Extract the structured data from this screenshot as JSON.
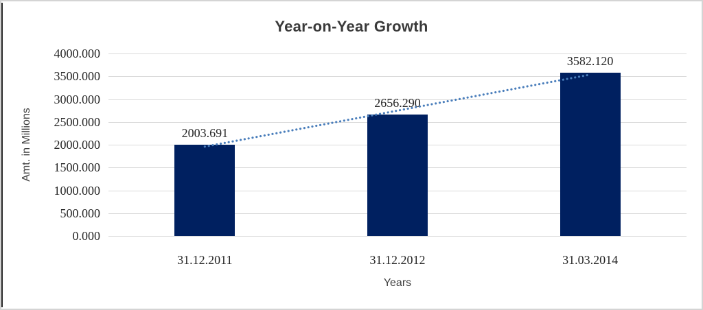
{
  "panel": {
    "background": "#ffffff",
    "border_color": "#d4d4d4",
    "left_edge_color": "#262626"
  },
  "chart_data": {
    "type": "bar",
    "title": "Year-on-Year Growth",
    "xlabel": "Years",
    "ylabel": "Amt. in Millions",
    "ylim": [
      0,
      4000
    ],
    "ytick_step": 500,
    "ytick_values": [
      4000,
      3500,
      3000,
      2500,
      2000,
      1500,
      1000,
      500,
      0
    ],
    "ytick_labels": [
      "4000.000",
      "3500.000",
      "3000.000",
      "2500.000",
      "2000.000",
      "1500.000",
      "1000.000",
      "500.000",
      "0.000"
    ],
    "categories": [
      "31.12.2011",
      "31.12.2012",
      "31.03.2014"
    ],
    "values": [
      2003.691,
      2656.29,
      3582.12
    ],
    "data_labels": [
      "2003.691",
      "2656.290",
      "3582.120"
    ],
    "grid": true,
    "legend": "none",
    "bar_color": "#002060",
    "gridline_color": "#d9d9d9",
    "label_color": "#262626",
    "title_color": "#3a3a3a",
    "trendline": {
      "type": "linear",
      "style": "dotted",
      "color": "#4a7ebb"
    }
  }
}
